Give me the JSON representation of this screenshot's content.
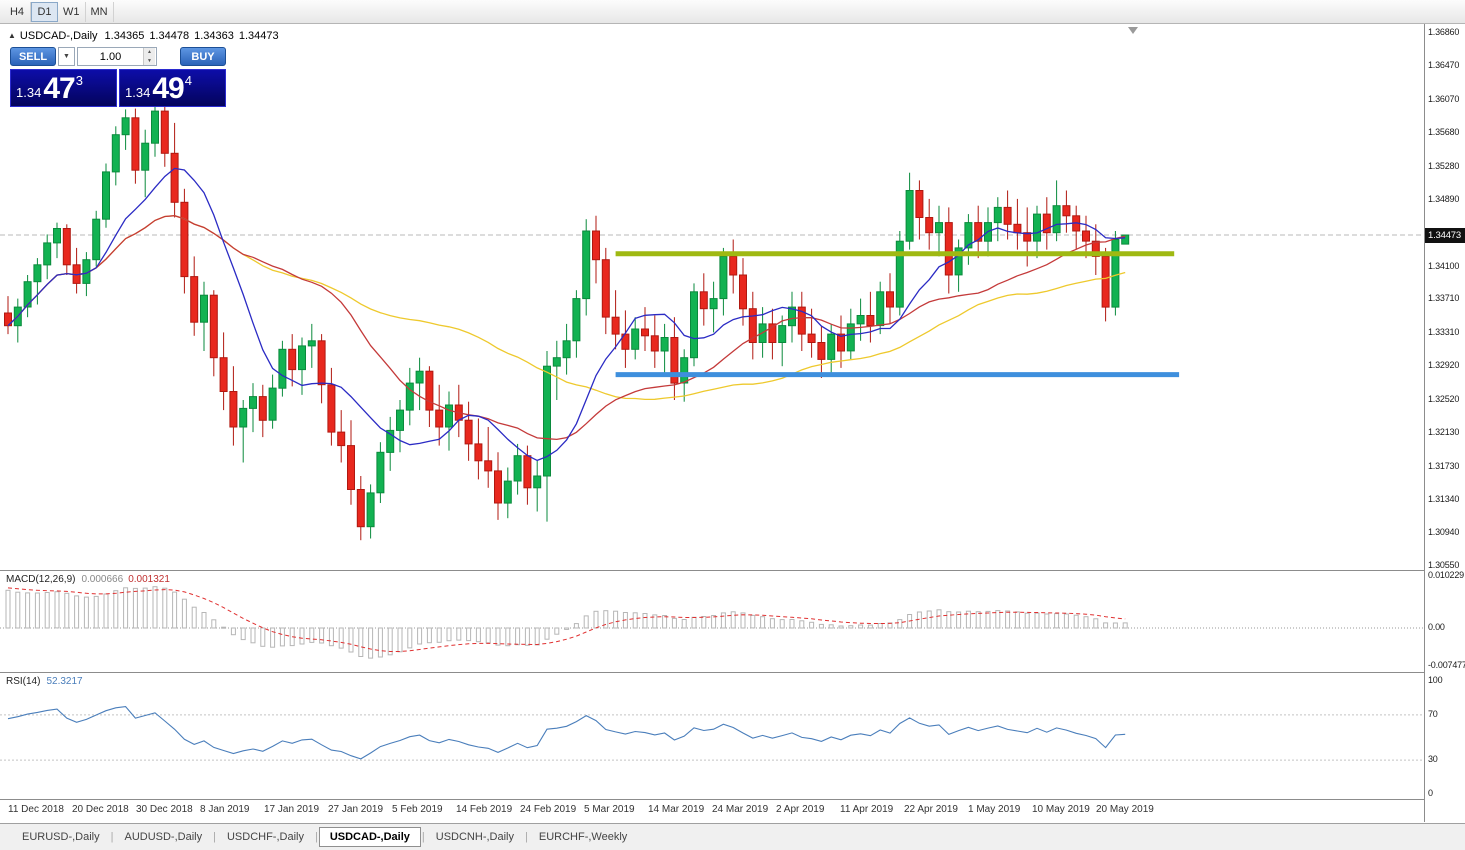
{
  "toolbar": {
    "timeframes": [
      "H4",
      "D1",
      "W1",
      "MN"
    ],
    "active_timeframe": "D1"
  },
  "window": {
    "symbol_title": "USDCAD-,Daily",
    "ohlc": {
      "open": "1.34365",
      "high": "1.34478",
      "low": "1.34363",
      "close": "1.34473"
    },
    "current_price": "1.34473"
  },
  "trade_panel": {
    "sell_label": "SELL",
    "buy_label": "BUY",
    "volume": "1.00",
    "dropdown_arrow": "▼",
    "sell_price": {
      "base": "1.34",
      "big": "47",
      "sup": "3"
    },
    "buy_price": {
      "base": "1.34",
      "big": "49",
      "sup": "4"
    }
  },
  "colors": {
    "candle_up": "#12b252",
    "candle_up_border": "#0a8a3c",
    "candle_down": "#e8281e",
    "candle_down_border": "#b01810",
    "price_line": "#b8b8b8",
    "macd_histogram": "#b6b6b6",
    "macd_signal": "#e03030",
    "rsi_line": "#4a7ebb"
  },
  "chart_data": {
    "type": "candlestick",
    "symbol": "USDCAD",
    "timeframe": "Daily",
    "price_ticks": [
      "1.36860",
      "1.36470",
      "1.36070",
      "1.35680",
      "1.35280",
      "1.34890",
      "1.34100",
      "1.33710",
      "1.33310",
      "1.32920",
      "1.32520",
      "1.32130",
      "1.31730",
      "1.31340",
      "1.30940",
      "1.30550"
    ],
    "time_labels": [
      "11 Dec 2018",
      "20 Dec 2018",
      "30 Dec 2018",
      "8 Jan 2019",
      "17 Jan 2019",
      "27 Jan 2019",
      "5 Feb 2019",
      "14 Feb 2019",
      "24 Feb 2019",
      "5 Mar 2019",
      "14 Mar 2019",
      "24 Mar 2019",
      "2 Apr 2019",
      "11 Apr 2019",
      "22 Apr 2019",
      "1 May 2019",
      "10 May 2019",
      "20 May 2019"
    ],
    "candles": [
      [
        1.3355,
        1.3375,
        1.333,
        1.334
      ],
      [
        1.334,
        1.3372,
        1.332,
        1.3362
      ],
      [
        1.3362,
        1.34,
        1.335,
        1.3392
      ],
      [
        1.3392,
        1.342,
        1.3365,
        1.3412
      ],
      [
        1.3412,
        1.3448,
        1.3395,
        1.3438
      ],
      [
        1.3438,
        1.3462,
        1.342,
        1.3455
      ],
      [
        1.3455,
        1.346,
        1.34,
        1.3412
      ],
      [
        1.3412,
        1.3432,
        1.3378,
        1.339
      ],
      [
        1.339,
        1.3427,
        1.3375,
        1.3418
      ],
      [
        1.3418,
        1.3476,
        1.341,
        1.3466
      ],
      [
        1.3466,
        1.3532,
        1.3456,
        1.3522
      ],
      [
        1.3522,
        1.3576,
        1.3506,
        1.3566
      ],
      [
        1.3566,
        1.3596,
        1.3548,
        1.3586
      ],
      [
        1.3586,
        1.3597,
        1.3508,
        1.3524
      ],
      [
        1.3524,
        1.3572,
        1.3492,
        1.3556
      ],
      [
        1.3556,
        1.3602,
        1.354,
        1.3594
      ],
      [
        1.3594,
        1.36,
        1.3528,
        1.3544
      ],
      [
        1.3544,
        1.358,
        1.3468,
        1.3486
      ],
      [
        1.3486,
        1.3502,
        1.3378,
        1.3398
      ],
      [
        1.3398,
        1.3422,
        1.3328,
        1.3344
      ],
      [
        1.3344,
        1.3392,
        1.331,
        1.3376
      ],
      [
        1.3376,
        1.3382,
        1.328,
        1.3302
      ],
      [
        1.3302,
        1.3332,
        1.324,
        1.3262
      ],
      [
        1.3262,
        1.3292,
        1.3198,
        1.322
      ],
      [
        1.322,
        1.3252,
        1.3178,
        1.3242
      ],
      [
        1.3242,
        1.3272,
        1.3214,
        1.3256
      ],
      [
        1.3256,
        1.327,
        1.3208,
        1.3228
      ],
      [
        1.3228,
        1.3282,
        1.3218,
        1.3266
      ],
      [
        1.3266,
        1.3322,
        1.3256,
        1.3312
      ],
      [
        1.3312,
        1.333,
        1.3268,
        1.3288
      ],
      [
        1.3288,
        1.3326,
        1.3258,
        1.3316
      ],
      [
        1.3316,
        1.3342,
        1.329,
        1.3322
      ],
      [
        1.3322,
        1.333,
        1.3248,
        1.327
      ],
      [
        1.327,
        1.329,
        1.3198,
        1.3214
      ],
      [
        1.3214,
        1.324,
        1.3178,
        1.3198
      ],
      [
        1.3198,
        1.3228,
        1.3128,
        1.3146
      ],
      [
        1.3146,
        1.3162,
        1.3086,
        1.3102
      ],
      [
        1.3102,
        1.3152,
        1.3088,
        1.3142
      ],
      [
        1.3142,
        1.3202,
        1.313,
        1.319
      ],
      [
        1.319,
        1.3232,
        1.3168,
        1.3216
      ],
      [
        1.3216,
        1.3252,
        1.319,
        1.324
      ],
      [
        1.324,
        1.329,
        1.3222,
        1.3272
      ],
      [
        1.3272,
        1.3302,
        1.324,
        1.3286
      ],
      [
        1.3286,
        1.3292,
        1.322,
        1.324
      ],
      [
        1.324,
        1.327,
        1.3198,
        1.322
      ],
      [
        1.322,
        1.3262,
        1.3192,
        1.3246
      ],
      [
        1.3246,
        1.327,
        1.3208,
        1.3228
      ],
      [
        1.3228,
        1.325,
        1.318,
        1.32
      ],
      [
        1.32,
        1.323,
        1.3158,
        1.318
      ],
      [
        1.318,
        1.322,
        1.3148,
        1.3168
      ],
      [
        1.3168,
        1.319,
        1.311,
        1.313
      ],
      [
        1.313,
        1.3172,
        1.3112,
        1.3156
      ],
      [
        1.3156,
        1.32,
        1.314,
        1.3186
      ],
      [
        1.3186,
        1.3198,
        1.3128,
        1.3148
      ],
      [
        1.3148,
        1.318,
        1.312,
        1.3162
      ],
      [
        1.3162,
        1.331,
        1.3108,
        1.3292
      ],
      [
        1.3292,
        1.3322,
        1.3252,
        1.3302
      ],
      [
        1.3302,
        1.3342,
        1.3282,
        1.3322
      ],
      [
        1.3322,
        1.3382,
        1.3302,
        1.3372
      ],
      [
        1.3372,
        1.3466,
        1.3352,
        1.3452
      ],
      [
        1.3452,
        1.347,
        1.339,
        1.3418
      ],
      [
        1.3418,
        1.3432,
        1.333,
        1.335
      ],
      [
        1.335,
        1.3382,
        1.3312,
        1.333
      ],
      [
        1.333,
        1.3358,
        1.329,
        1.3312
      ],
      [
        1.3312,
        1.335,
        1.33,
        1.3336
      ],
      [
        1.3336,
        1.3362,
        1.331,
        1.3328
      ],
      [
        1.3328,
        1.3352,
        1.329,
        1.331
      ],
      [
        1.331,
        1.3342,
        1.3282,
        1.3326
      ],
      [
        1.3326,
        1.335,
        1.3252,
        1.3272
      ],
      [
        1.3272,
        1.3312,
        1.325,
        1.3302
      ],
      [
        1.3302,
        1.339,
        1.3292,
        1.338
      ],
      [
        1.338,
        1.3402,
        1.334,
        1.336
      ],
      [
        1.336,
        1.3392,
        1.3332,
        1.3372
      ],
      [
        1.3372,
        1.3432,
        1.3352,
        1.3422
      ],
      [
        1.3422,
        1.3442,
        1.3378,
        1.34
      ],
      [
        1.34,
        1.342,
        1.334,
        1.336
      ],
      [
        1.336,
        1.338,
        1.33,
        1.332
      ],
      [
        1.332,
        1.3362,
        1.3302,
        1.3342
      ],
      [
        1.3342,
        1.336,
        1.33,
        1.332
      ],
      [
        1.332,
        1.3352,
        1.3292,
        1.334
      ],
      [
        1.334,
        1.338,
        1.332,
        1.3362
      ],
      [
        1.3362,
        1.338,
        1.331,
        1.333
      ],
      [
        1.333,
        1.336,
        1.3302,
        1.332
      ],
      [
        1.332,
        1.334,
        1.3278,
        1.33
      ],
      [
        1.33,
        1.3342,
        1.3282,
        1.333
      ],
      [
        1.333,
        1.3352,
        1.329,
        1.331
      ],
      [
        1.331,
        1.336,
        1.33,
        1.3342
      ],
      [
        1.3342,
        1.3372,
        1.3322,
        1.3352
      ],
      [
        1.3352,
        1.338,
        1.332,
        1.334
      ],
      [
        1.334,
        1.3392,
        1.333,
        1.338
      ],
      [
        1.338,
        1.3402,
        1.3342,
        1.3362
      ],
      [
        1.3362,
        1.3452,
        1.3352,
        1.344
      ],
      [
        1.344,
        1.3521,
        1.343,
        1.35
      ],
      [
        1.35,
        1.3512,
        1.3442,
        1.3468
      ],
      [
        1.3468,
        1.349,
        1.343,
        1.345
      ],
      [
        1.345,
        1.3482,
        1.3422,
        1.3462
      ],
      [
        1.3462,
        1.348,
        1.3378,
        1.34
      ],
      [
        1.34,
        1.3442,
        1.338,
        1.3432
      ],
      [
        1.3432,
        1.3472,
        1.3412,
        1.3462
      ],
      [
        1.3462,
        1.3482,
        1.342,
        1.344
      ],
      [
        1.344,
        1.348,
        1.3422,
        1.3462
      ],
      [
        1.3462,
        1.3492,
        1.344,
        1.348
      ],
      [
        1.348,
        1.35,
        1.3442,
        1.346
      ],
      [
        1.346,
        1.349,
        1.343,
        1.345
      ],
      [
        1.345,
        1.348,
        1.341,
        1.344
      ],
      [
        1.344,
        1.3482,
        1.342,
        1.3472
      ],
      [
        1.3472,
        1.3492,
        1.343,
        1.345
      ],
      [
        1.345,
        1.3512,
        1.344,
        1.3482
      ],
      [
        1.3482,
        1.35,
        1.345,
        1.347
      ],
      [
        1.347,
        1.3482,
        1.343,
        1.3452
      ],
      [
        1.3452,
        1.347,
        1.342,
        1.344
      ],
      [
        1.344,
        1.346,
        1.34,
        1.3422
      ],
      [
        1.3422,
        1.3432,
        1.3345,
        1.3362
      ],
      [
        1.3362,
        1.3452,
        1.3352,
        1.3442
      ],
      [
        1.34365,
        1.34478,
        1.34363,
        1.34473
      ]
    ],
    "overlays": [
      {
        "name": "ma-slow-yellow-line",
        "period": 45,
        "color": "#eec92d"
      },
      {
        "name": "ma-mid-red-line",
        "period": 25,
        "color": "#c43a3a"
      },
      {
        "name": "ma-fast-blue-line",
        "period": 10,
        "color": "#2b2bc4"
      }
    ],
    "horizontal_lines": [
      {
        "name": "resistance-line",
        "price": 1.3425,
        "color": "#9fb912",
        "from_index": 62,
        "to_index": 119
      },
      {
        "name": "support-line",
        "price": 1.3282,
        "color": "#3e8fdd",
        "from_index": 62,
        "to_index": 119.5
      }
    ],
    "indicators": {
      "macd": {
        "label": "MACD(12,26,9)",
        "value_main": "0.000666",
        "value_signal": "0.001321",
        "fast": 12,
        "slow": 26,
        "signal": 9,
        "scale_labels": [
          "0.010229",
          "0.00",
          "-0.007477"
        ]
      },
      "rsi": {
        "label": "RSI(14)",
        "value": "52.3217",
        "period": 14,
        "levels": [
          70,
          30
        ],
        "scale_labels": [
          "100",
          "70",
          "30",
          "0"
        ]
      }
    }
  },
  "bottom_tabs": {
    "items": [
      "EURUSD-,Daily",
      "AUDUSD-,Daily",
      "USDCHF-,Daily",
      "USDCAD-,Daily",
      "USDCNH-,Daily",
      "EURCHF-,Weekly"
    ],
    "active": "USDCAD-,Daily"
  }
}
